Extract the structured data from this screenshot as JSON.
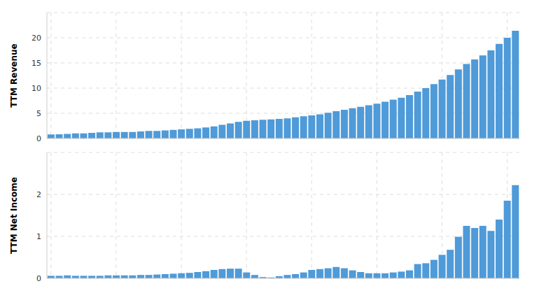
{
  "chart_data": [
    {
      "type": "bar",
      "ylabel": "TTM Revenue",
      "categories": [
        null,
        null,
        null,
        null,
        null,
        null,
        null,
        null,
        null,
        null,
        null,
        null,
        null,
        null,
        null,
        null,
        null,
        null,
        null,
        null,
        null,
        null,
        null,
        null,
        null,
        null,
        null,
        null,
        null,
        null,
        null,
        null,
        null,
        null,
        null,
        null,
        null,
        null,
        null,
        null,
        null,
        null,
        null,
        null,
        null,
        null,
        null,
        null,
        null,
        null,
        null,
        null,
        null,
        null,
        null,
        null,
        null,
        null
      ],
      "values": [
        0.8,
        0.85,
        0.9,
        1.0,
        1.0,
        1.1,
        1.2,
        1.2,
        1.3,
        1.3,
        1.3,
        1.4,
        1.5,
        1.5,
        1.6,
        1.7,
        1.8,
        1.9,
        2.0,
        2.2,
        2.4,
        2.7,
        3.0,
        3.3,
        3.5,
        3.6,
        3.7,
        3.8,
        3.9,
        4.0,
        4.2,
        4.4,
        4.6,
        4.8,
        5.1,
        5.4,
        5.7,
        6.0,
        6.3,
        6.6,
        6.9,
        7.3,
        7.7,
        8.1,
        8.6,
        9.3,
        10.0,
        10.8,
        11.7,
        12.6,
        13.7,
        14.8,
        15.7,
        16.5,
        17.5,
        18.8,
        20.0,
        21.4
      ],
      "color": "#4f9ad8",
      "ylim": [
        0,
        25
      ],
      "yticks": [
        0,
        5,
        10,
        15,
        20
      ],
      "grid": true,
      "tick_labels": "y"
    },
    {
      "type": "bar",
      "ylabel": "TTM Net Income",
      "categories": [
        null,
        null,
        null,
        null,
        null,
        null,
        null,
        null,
        null,
        null,
        null,
        null,
        null,
        null,
        null,
        null,
        null,
        null,
        null,
        null,
        null,
        null,
        null,
        null,
        null,
        null,
        null,
        null,
        null,
        null,
        null,
        null,
        null,
        null,
        null,
        null,
        null,
        null,
        null,
        null,
        null,
        null,
        null,
        null,
        null,
        null,
        null,
        null,
        null,
        null,
        null,
        null,
        null,
        null,
        null,
        null,
        null,
        null
      ],
      "values": [
        0.06,
        0.06,
        0.07,
        0.06,
        0.06,
        0.06,
        0.06,
        0.07,
        0.07,
        0.07,
        0.07,
        0.08,
        0.08,
        0.09,
        0.1,
        0.11,
        0.12,
        0.13,
        0.15,
        0.17,
        0.2,
        0.22,
        0.23,
        0.23,
        0.14,
        0.08,
        0.03,
        0.02,
        0.05,
        0.08,
        0.1,
        0.14,
        0.2,
        0.22,
        0.24,
        0.27,
        0.24,
        0.19,
        0.15,
        0.12,
        0.12,
        0.12,
        0.14,
        0.16,
        0.19,
        0.34,
        0.36,
        0.44,
        0.56,
        0.68,
        0.99,
        1.25,
        1.2,
        1.25,
        1.13,
        1.4,
        1.85,
        2.22
      ],
      "color": "#4f9ad8",
      "ylim": [
        0,
        3
      ],
      "yticks": [
        0,
        1,
        2
      ],
      "grid": true,
      "tick_labels": "y"
    }
  ]
}
